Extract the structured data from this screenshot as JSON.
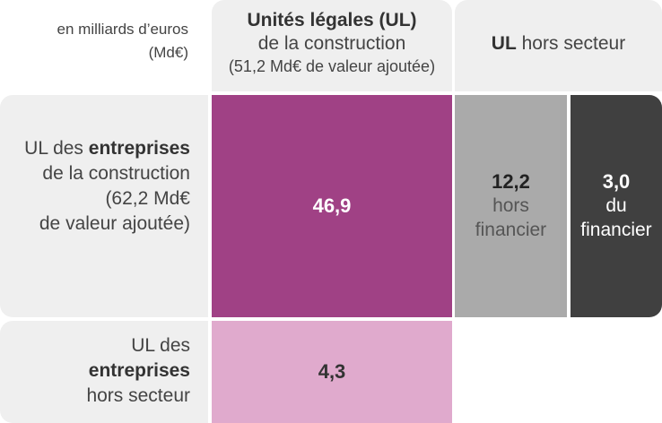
{
  "units_label": {
    "line1": "en milliards d’euros",
    "line2": "(Md€)"
  },
  "column_headers": {
    "ul_construction": {
      "title": "Unités légales (UL)",
      "subtitle": "de la construction",
      "value_added": "(51,2 Md€ de valeur ajoutée)"
    },
    "ul_hors_secteur": {
      "bold": "UL",
      "text": " hors secteur"
    }
  },
  "row_headers": {
    "entreprises_construction": {
      "prefix": "UL des ",
      "bold": "entreprises",
      "line2": "de la construction",
      "line3": "(62,2 Md€",
      "line4": "de valeur ajoutée)"
    },
    "entreprises_hors_secteur": {
      "line1": "UL des",
      "bold": "entreprises",
      "line3": "hors secteur"
    }
  },
  "cells": {
    "construction_x_construction": {
      "value": "46,9"
    },
    "construction_x_hors_financier": {
      "value": "12,2",
      "label_line1": "hors",
      "label_line2": "financier"
    },
    "construction_x_financier": {
      "value": "3,0",
      "label_line1": "du",
      "label_line2": "financier"
    },
    "hors_secteur_x_construction": {
      "value": "4,3"
    }
  },
  "colors": {
    "header_bg": "#efefef",
    "main_cell": "#a04185",
    "hors_financier": "#aaaaaa",
    "financier": "#404040",
    "hors_secteur_cell": "#e0aacd"
  }
}
